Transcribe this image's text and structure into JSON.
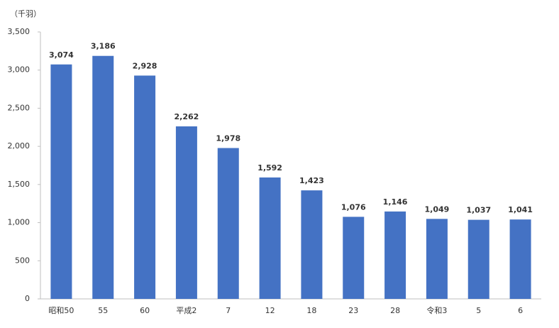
{
  "chart_data": {
    "type": "bar",
    "unit_label": "（千羽）",
    "categories": [
      "昭和50",
      "55",
      "60",
      "平成2",
      "7",
      "12",
      "18",
      "23",
      "28",
      "令和3",
      "5",
      "6"
    ],
    "values": [
      3074,
      3186,
      2928,
      2262,
      1978,
      1592,
      1423,
      1076,
      1146,
      1049,
      1037,
      1041
    ],
    "value_labels": [
      "3,074",
      "3,186",
      "2,928",
      "2,262",
      "1,978",
      "1,592",
      "1,423",
      "1,076",
      "1,146",
      "1,049",
      "1,037",
      "1,041"
    ],
    "color": "#4472c4",
    "ylim": [
      0,
      3500
    ],
    "yticks": [
      0,
      500,
      {
        "value": 1000,
        "label": "1,000"
      },
      {
        "value": 1500,
        "label": "1,500"
      },
      {
        "value": 2000,
        "label": "2,000"
      },
      {
        "value": 2500,
        "label": "2,500"
      },
      {
        "value": 3000,
        "label": "3,000"
      },
      {
        "value": 3500,
        "label": "3,500"
      }
    ],
    "grid": false
  }
}
